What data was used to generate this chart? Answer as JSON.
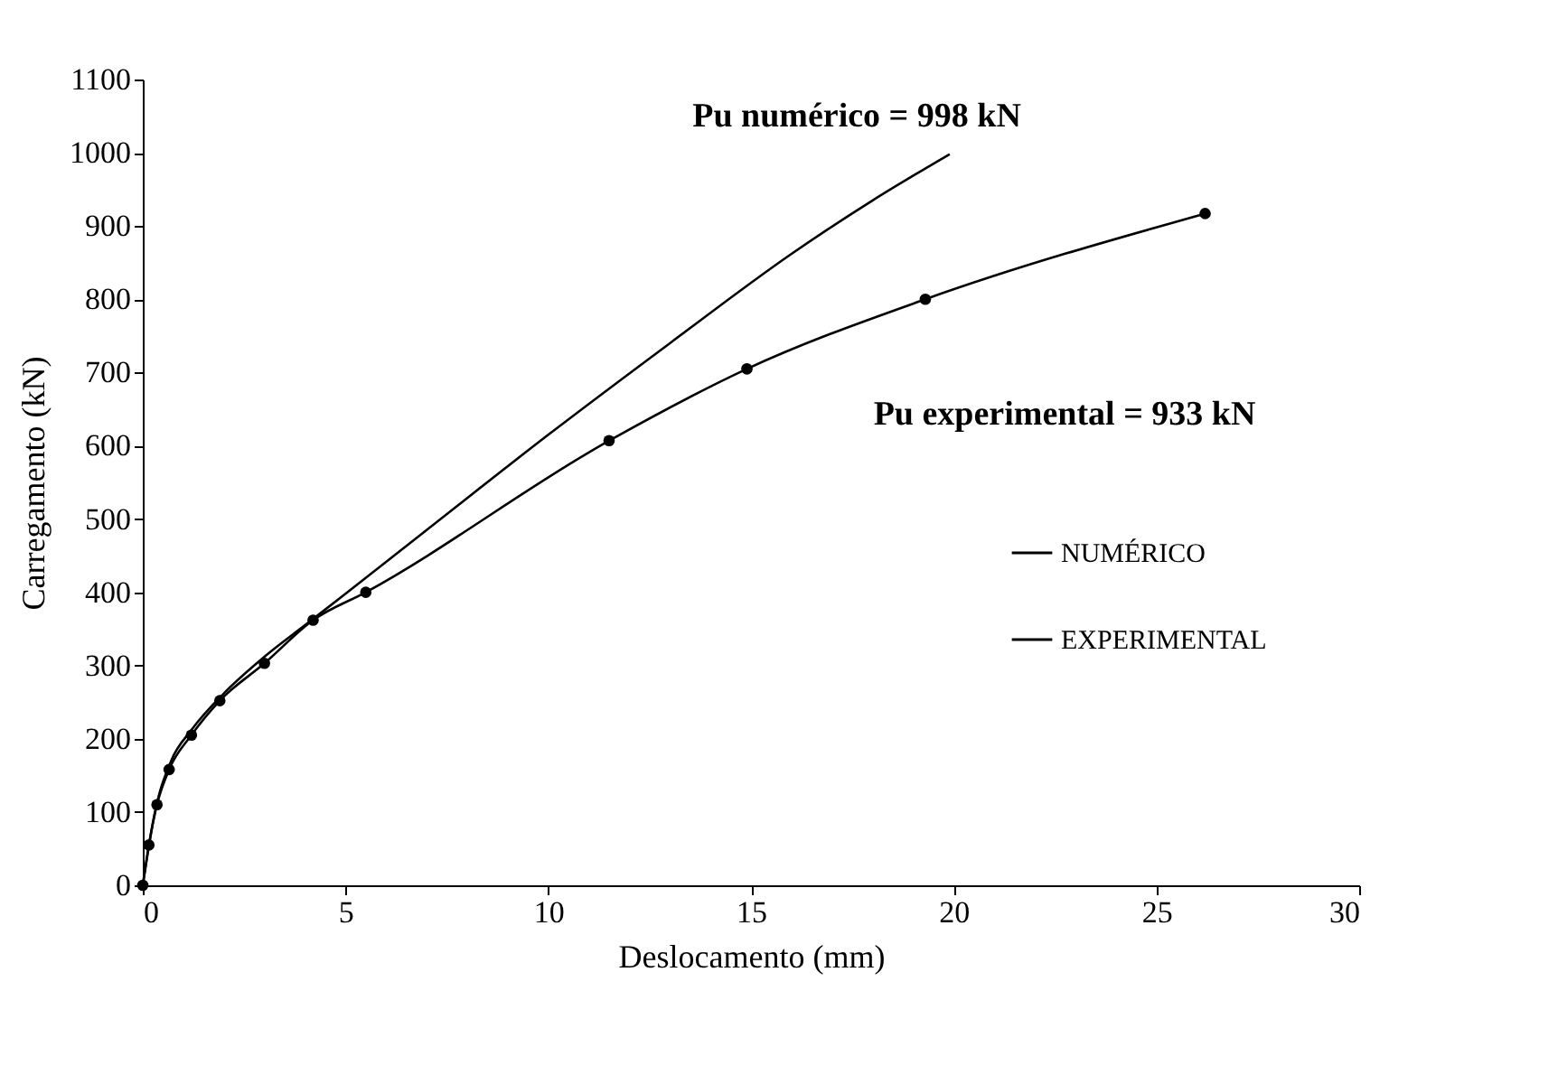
{
  "chart_data": {
    "type": "line",
    "xlabel": "Deslocamento (mm)",
    "ylabel": "Carregamento (kN)",
    "xlim": [
      0,
      30
    ],
    "xticks": [
      0,
      5,
      10,
      15,
      20,
      25,
      30
    ],
    "ylim": [
      0,
      1100
    ],
    "yticks": [
      0,
      100,
      200,
      300,
      400,
      500,
      600,
      700,
      800,
      900,
      1000,
      1100
    ],
    "grid": false,
    "legend": "right",
    "series": [
      {
        "name": "NUMÉRICO",
        "color": "#000000",
        "marker": "none",
        "x": [
          0,
          0.3,
          0.7,
          1.2,
          2,
          3,
          4,
          5,
          7,
          10,
          13,
          16,
          18,
          19.9
        ],
        "values": [
          0,
          100,
          170,
          212,
          262,
          312,
          355,
          398,
          485,
          615,
          740,
          862,
          935,
          998
        ]
      },
      {
        "name": "EXPERIMENTAL",
        "color": "#000000",
        "marker": "circle",
        "x": [
          0,
          0.15,
          0.35,
          0.65,
          1.2,
          1.9,
          3,
          4.2,
          5.5,
          11.5,
          14.9,
          19.3,
          26.2
        ],
        "values": [
          0,
          55,
          110,
          158,
          205,
          252,
          303,
          362,
          400,
          607,
          705,
          800,
          917
        ]
      }
    ],
    "annotations": [
      "Pu numérico = 998 kN",
      "Pu experimental = 933 kN"
    ]
  }
}
